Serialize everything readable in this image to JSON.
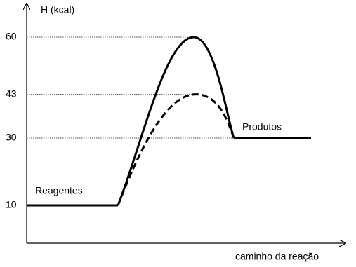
{
  "chart_data": {
    "type": "energy",
    "y_label": "H (kcal)",
    "x_label": "caminho da reação",
    "ylim": [
      0,
      70
    ],
    "yticks": [
      10,
      30,
      43,
      60
    ],
    "grid": "dotted",
    "reactants": {
      "label": "Reagentes",
      "value": 10
    },
    "products": {
      "label": "Produtos",
      "value": 30
    },
    "series": [
      {
        "style": "solid",
        "peak": 60,
        "color": "#000000"
      },
      {
        "style": "dashed",
        "peak": 43,
        "color": "#000000"
      }
    ]
  }
}
